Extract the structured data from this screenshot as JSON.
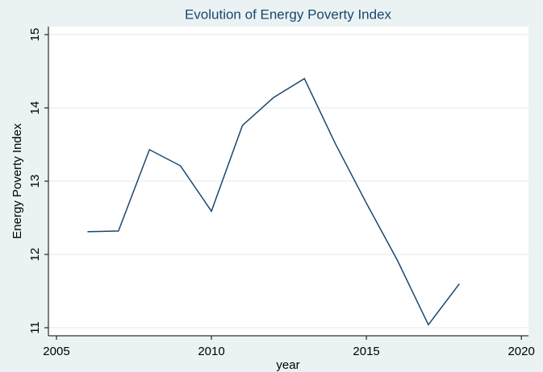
{
  "chart_data": {
    "type": "line",
    "title": "Evolution of Energy Poverty Index",
    "x_label": "year",
    "y_label": "Energy Poverty Index",
    "x": [
      2006,
      2007,
      2008,
      2009,
      2010,
      2011,
      2012,
      2013,
      2014,
      2015,
      2016,
      2017,
      2018
    ],
    "series": [
      {
        "name": "Energy Poverty Index",
        "color": "#1a476f",
        "values": [
          12.31,
          12.32,
          13.43,
          13.21,
          12.59,
          13.76,
          14.14,
          14.4,
          13.51,
          12.7,
          11.92,
          11.04,
          11.6
        ]
      }
    ],
    "xlim": [
      2004.74,
      2020.23
    ],
    "xticks": [
      2005,
      2010,
      2015,
      2020
    ],
    "ylim": [
      10.89,
      15.11
    ],
    "yticks": [
      11,
      12,
      13,
      14,
      15
    ],
    "grid": true
  }
}
